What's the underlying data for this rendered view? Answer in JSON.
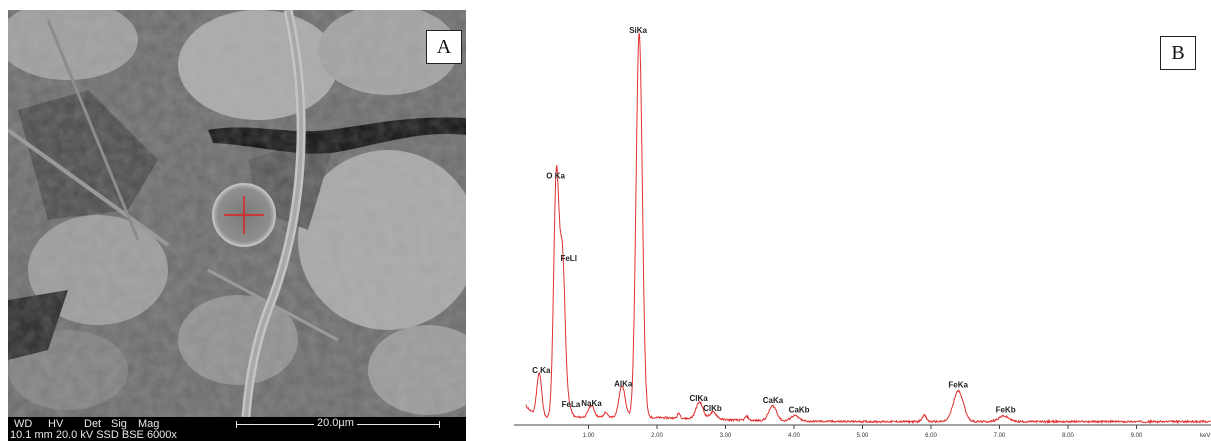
{
  "panel_a": {
    "label": "A",
    "infobar": {
      "wd_header": "WD",
      "hv_header": "HV",
      "det_header": "Det",
      "sig_header": "Sig",
      "mag_header": "Mag",
      "values": "10.1 mm 20.0 kV SSD BSE 6000x",
      "scale_bar": "20.0µm"
    }
  },
  "panel_b": {
    "label": "B"
  },
  "chart_data": {
    "type": "line",
    "xlabel": "keV",
    "x_ticks": [
      "1.00",
      "2.00",
      "3.00",
      "4.00",
      "5.00",
      "6.00",
      "7.00",
      "8.00",
      "9.00"
    ],
    "xlim": [
      0.0,
      9.8
    ],
    "ylim": [
      0,
      100
    ],
    "grid": false,
    "line_color": "#e03030",
    "peaks": [
      {
        "label": "C Ka",
        "energy": 0.28,
        "height": 11.5
      },
      {
        "label": "O Ka",
        "energy": 0.53,
        "height": 61.0
      },
      {
        "label": "FeLl",
        "energy": 0.62,
        "height": 40.0
      },
      {
        "label": "FeLa",
        "energy": 0.71,
        "height": 2.8
      },
      {
        "label": "NaKa",
        "energy": 1.04,
        "height": 3.0
      },
      {
        "label": "AlKa",
        "energy": 1.49,
        "height": 8.0
      },
      {
        "label": "SiKa",
        "energy": 1.74,
        "height": 98.0
      },
      {
        "label": "ClKa",
        "energy": 2.62,
        "height": 4.3
      },
      {
        "label": "ClKb",
        "energy": 2.82,
        "height": 1.8
      },
      {
        "label": "CaKa",
        "energy": 3.69,
        "height": 3.8
      },
      {
        "label": "CaKb",
        "energy": 4.01,
        "height": 1.4
      },
      {
        "label": "FeKa",
        "energy": 6.4,
        "height": 7.8
      },
      {
        "label": "FeKb",
        "energy": 7.06,
        "height": 1.4
      }
    ]
  }
}
